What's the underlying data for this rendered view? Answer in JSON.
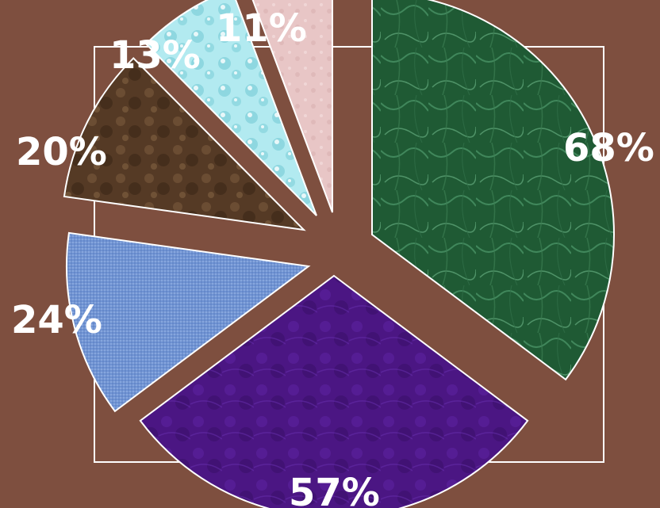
{
  "chart_data": {
    "type": "pie",
    "title": "",
    "slices": [
      {
        "label": "68%",
        "value": 68,
        "color": "#1f5a34",
        "pattern": "green-marble"
      },
      {
        "label": "57%",
        "value": 57,
        "color": "#4b1683",
        "pattern": "purple-velvet"
      },
      {
        "label": "24%",
        "value": 24,
        "color": "#6f93d3",
        "pattern": "blue-canvas"
      },
      {
        "label": "20%",
        "value": 20,
        "color": "#553a25",
        "pattern": "brown-leather"
      },
      {
        "label": "13%",
        "value": 13,
        "color": "#b2eaf0",
        "pattern": "cyan-bubbles"
      },
      {
        "label": "11%",
        "value": 11,
        "color": "#e8c6c6",
        "pattern": "pink-paper"
      }
    ],
    "exploded": true,
    "legend": "none",
    "background_color": "#7e4f3f",
    "label_color": "#ffffff"
  }
}
